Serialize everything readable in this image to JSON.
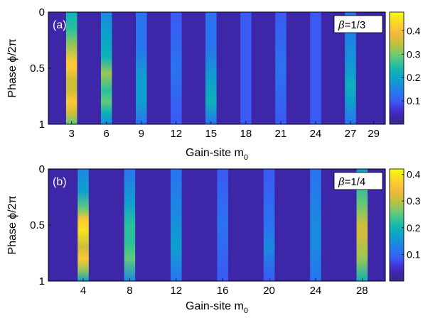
{
  "chart_data": [
    {
      "type": "heatmap",
      "panel_label": "(a)",
      "annotation_symbol": "β",
      "annotation_value": "=1/3",
      "xlabel": "Gain-site m",
      "xlabel_sub": "0",
      "ylabel": "Phase ϕ/2π",
      "xlim": [
        1,
        30
      ],
      "ylim": [
        0,
        1
      ],
      "x_ticks": [
        3,
        6,
        9,
        12,
        15,
        18,
        21,
        24,
        27,
        29
      ],
      "y_ticks": [
        0,
        0.5,
        1
      ],
      "y_tick_labels": [
        "0",
        "0.5",
        "1"
      ],
      "colorbar": {
        "min": 0,
        "max": 0.48,
        "ticks": [
          0.1,
          0.2,
          0.3,
          0.4
        ],
        "tick_labels": [
          "0.1",
          "0.2",
          "0.3",
          "0.4"
        ]
      },
      "columns": [
        {
          "x": 3,
          "profile": [
            [
              0,
              0.22
            ],
            [
              0.15,
              0.26
            ],
            [
              0.3,
              0.32
            ],
            [
              0.45,
              0.4
            ],
            [
              0.5,
              0.41
            ],
            [
              0.6,
              0.36
            ],
            [
              0.7,
              0.35
            ],
            [
              0.8,
              0.42
            ],
            [
              0.9,
              0.36
            ],
            [
              1,
              0.3
            ]
          ]
        },
        {
          "x": 6,
          "profile": [
            [
              0,
              0.16
            ],
            [
              0.2,
              0.18
            ],
            [
              0.4,
              0.21
            ],
            [
              0.55,
              0.31
            ],
            [
              0.7,
              0.27
            ],
            [
              0.8,
              0.28
            ],
            [
              0.9,
              0.22
            ],
            [
              1,
              0.16
            ]
          ]
        },
        {
          "x": 9,
          "profile": [
            [
              0,
              0.12
            ],
            [
              0.3,
              0.14
            ],
            [
              0.6,
              0.19
            ],
            [
              0.8,
              0.2
            ],
            [
              1,
              0.13
            ]
          ]
        },
        {
          "x": 12,
          "profile": [
            [
              0,
              0.11
            ],
            [
              0.5,
              0.12
            ],
            [
              1,
              0.11
            ]
          ]
        },
        {
          "x": 15,
          "profile": [
            [
              0,
              0.12
            ],
            [
              0.3,
              0.14
            ],
            [
              0.6,
              0.2
            ],
            [
              0.8,
              0.21
            ],
            [
              1,
              0.14
            ]
          ]
        },
        {
          "x": 18,
          "profile": [
            [
              0,
              0.09
            ],
            [
              0.5,
              0.11
            ],
            [
              1,
              0.1
            ]
          ]
        },
        {
          "x": 21,
          "profile": [
            [
              0,
              0.1
            ],
            [
              0.5,
              0.12
            ],
            [
              1,
              0.11
            ]
          ]
        },
        {
          "x": 24,
          "profile": [
            [
              0,
              0.08
            ],
            [
              0.5,
              0.09
            ],
            [
              1,
              0.08
            ]
          ]
        },
        {
          "x": 27,
          "profile": [
            [
              0,
              0.14
            ],
            [
              0.3,
              0.16
            ],
            [
              0.55,
              0.2
            ],
            [
              0.65,
              0.23
            ],
            [
              0.8,
              0.2
            ],
            [
              1,
              0.14
            ]
          ]
        }
      ]
    },
    {
      "type": "heatmap",
      "panel_label": "(b)",
      "annotation_symbol": "β",
      "annotation_value": "=1/4",
      "xlabel": "Gain-site m",
      "xlabel_sub": "0",
      "ylabel": "Phase ϕ/2π",
      "xlim": [
        1,
        30
      ],
      "ylim": [
        0,
        1
      ],
      "x_ticks": [
        4,
        8,
        12,
        16,
        20,
        24,
        28
      ],
      "y_ticks": [
        0,
        0.5,
        1
      ],
      "y_tick_labels": [
        "0",
        "0.5",
        "1"
      ],
      "colorbar": {
        "min": 0,
        "max": 0.42,
        "ticks": [
          0.1,
          0.2,
          0.3,
          0.4
        ],
        "tick_labels": [
          "0.1",
          "0.2",
          "0.3",
          "0.4"
        ]
      },
      "columns": [
        {
          "x": 4,
          "profile": [
            [
              0,
              0.14
            ],
            [
              0.2,
              0.18
            ],
            [
              0.35,
              0.26
            ],
            [
              0.45,
              0.36
            ],
            [
              0.55,
              0.4
            ],
            [
              0.7,
              0.32
            ],
            [
              0.8,
              0.36
            ],
            [
              0.9,
              0.28
            ],
            [
              1,
              0.18
            ]
          ]
        },
        {
          "x": 8,
          "profile": [
            [
              0,
              0.12
            ],
            [
              0.3,
              0.18
            ],
            [
              0.5,
              0.23
            ],
            [
              0.65,
              0.22
            ],
            [
              0.8,
              0.24
            ],
            [
              1,
              0.15
            ]
          ]
        },
        {
          "x": 12,
          "profile": [
            [
              0,
              0.1
            ],
            [
              0.4,
              0.13
            ],
            [
              0.7,
              0.16
            ],
            [
              1,
              0.11
            ]
          ]
        },
        {
          "x": 16,
          "profile": [
            [
              0,
              0.08
            ],
            [
              0.5,
              0.1
            ],
            [
              1,
              0.09
            ]
          ]
        },
        {
          "x": 20,
          "profile": [
            [
              0,
              0.08
            ],
            [
              0.5,
              0.12
            ],
            [
              0.7,
              0.14
            ],
            [
              1,
              0.09
            ]
          ]
        },
        {
          "x": 24,
          "profile": [
            [
              0,
              0.11
            ],
            [
              0.5,
              0.14
            ],
            [
              0.7,
              0.15
            ],
            [
              1,
              0.12
            ]
          ]
        },
        {
          "x": 28,
          "profile": [
            [
              0,
              0.18
            ],
            [
              0.3,
              0.24
            ],
            [
              0.5,
              0.3
            ],
            [
              0.6,
              0.32
            ],
            [
              0.8,
              0.28
            ],
            [
              1,
              0.2
            ]
          ]
        }
      ]
    }
  ]
}
